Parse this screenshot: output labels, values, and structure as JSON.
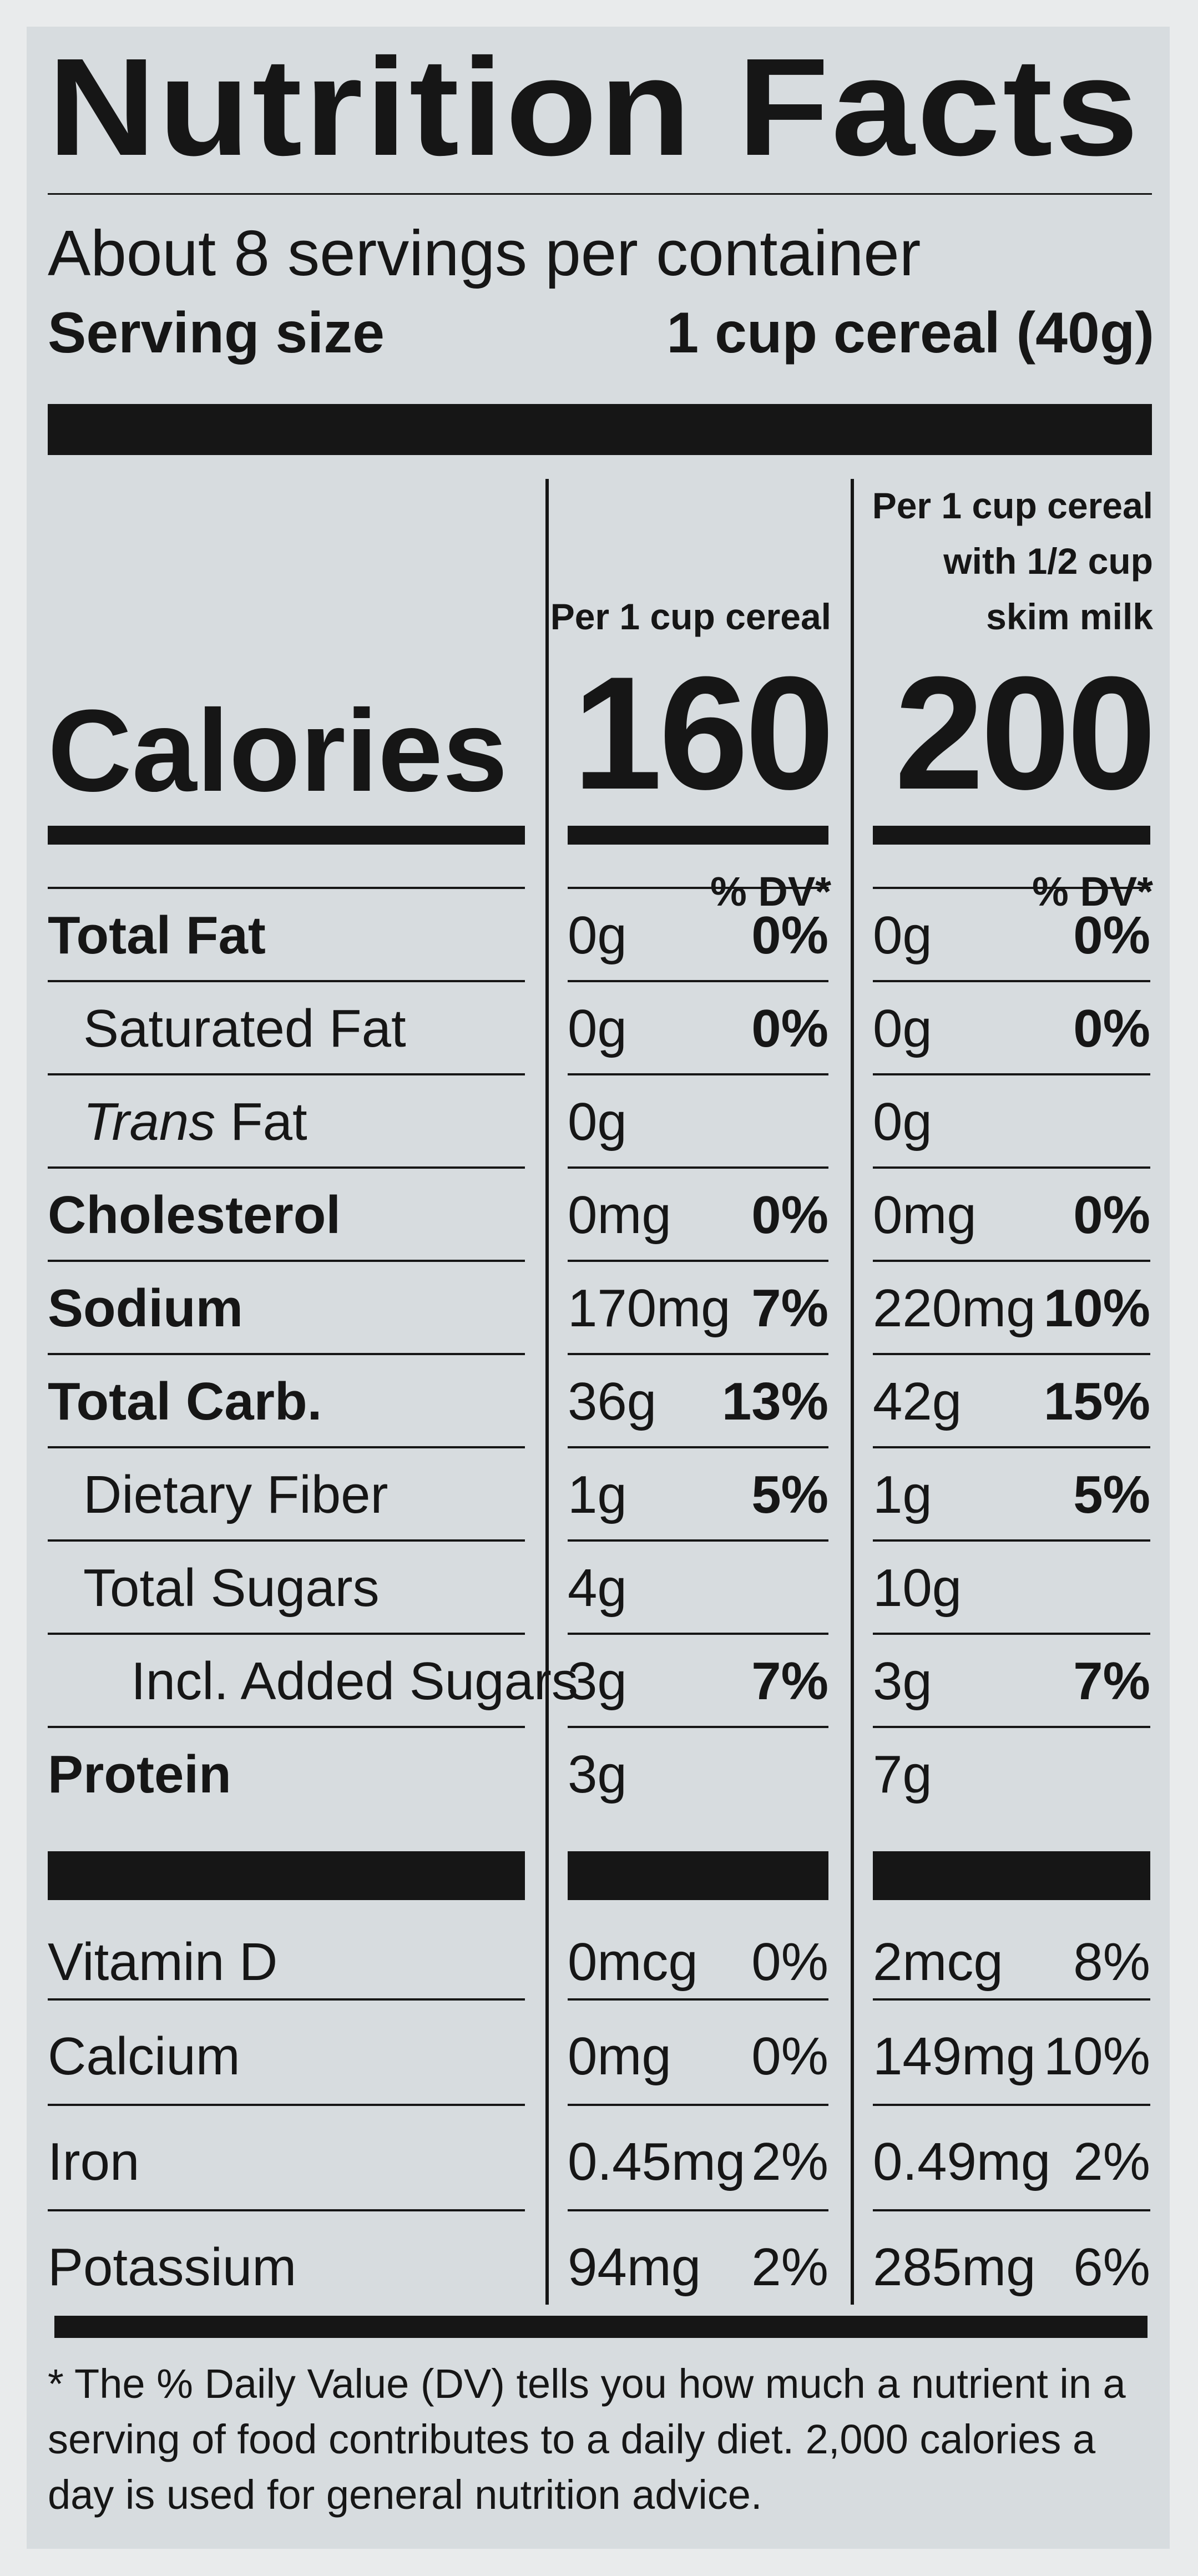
{
  "label": {
    "title": "Nutrition Facts",
    "servings_per_container": "About 8 servings per container",
    "serving_size_label": "Serving size",
    "serving_size_value": "1 cup cereal (40g)",
    "columns": [
      {
        "header_lines": [
          "Per 1 cup cereal"
        ],
        "calories": "160"
      },
      {
        "header_lines": [
          "Per 1 cup  cereal",
          "with 1/2 cup",
          "skim milk"
        ],
        "calories": "200"
      }
    ],
    "calories_label": "Calories",
    "dv_header": "% DV*",
    "nutrients": [
      {
        "name": "Total Fat",
        "italic_prefix": "",
        "style": "bold",
        "c1_amount": "0g",
        "c1_dv": "0%",
        "c2_amount": "0g",
        "c2_dv": "0%"
      },
      {
        "name": "Saturated Fat",
        "italic_prefix": "",
        "style": "indent1",
        "c1_amount": "0g",
        "c1_dv": "0%",
        "c2_amount": "0g",
        "c2_dv": "0%"
      },
      {
        "name": " Fat",
        "italic_prefix": "Trans",
        "style": "indent1",
        "c1_amount": "0g",
        "c1_dv": "",
        "c2_amount": "0g",
        "c2_dv": ""
      },
      {
        "name": "Cholesterol",
        "italic_prefix": "",
        "style": "bold",
        "c1_amount": "0mg",
        "c1_dv": "0%",
        "c2_amount": "0mg",
        "c2_dv": "0%"
      },
      {
        "name": "Sodium",
        "italic_prefix": "",
        "style": "bold",
        "c1_amount": "170mg",
        "c1_dv": "7%",
        "c2_amount": "220mg",
        "c2_dv": "10%"
      },
      {
        "name": "Total Carb.",
        "italic_prefix": "",
        "style": "bold",
        "c1_amount": "36g",
        "c1_dv": "13%",
        "c2_amount": "42g",
        "c2_dv": "15%"
      },
      {
        "name": "Dietary Fiber",
        "italic_prefix": "",
        "style": "indent1",
        "c1_amount": "1g",
        "c1_dv": "5%",
        "c2_amount": "1g",
        "c2_dv": "5%"
      },
      {
        "name": "Total Sugars",
        "italic_prefix": "",
        "style": "indent1",
        "c1_amount": "4g",
        "c1_dv": "",
        "c2_amount": "10g",
        "c2_dv": ""
      },
      {
        "name": "Incl. Added Sugars",
        "italic_prefix": "",
        "style": "indent2",
        "c1_amount": "3g",
        "c1_dv": "7%",
        "c2_amount": "3g",
        "c2_dv": "7%"
      },
      {
        "name": "Protein",
        "italic_prefix": "",
        "style": "bold",
        "c1_amount": "3g",
        "c1_dv": "",
        "c2_amount": "7g",
        "c2_dv": ""
      }
    ],
    "vitamins": [
      {
        "name": "Vitamin D",
        "c1_amount": "0mcg",
        "c1_dv": "0%",
        "c2_amount": "2mcg",
        "c2_dv": "8%"
      },
      {
        "name": "Calcium",
        "c1_amount": "0mg",
        "c1_dv": "0%",
        "c2_amount": "149mg",
        "c2_dv": "10%"
      },
      {
        "name": "Iron",
        "c1_amount": "0.45mg",
        "c1_dv": "2%",
        "c2_amount": "0.49mg",
        "c2_dv": "2%"
      },
      {
        "name": "Potassium",
        "c1_amount": "94mg",
        "c1_dv": "2%",
        "c2_amount": "285mg",
        "c2_dv": "6%"
      }
    ],
    "footnote": "* The % Daily Value (DV) tells you how much a nutrient in a serving of food contributes to a daily diet. 2,000 calories a day is used for general nutrition advice."
  }
}
